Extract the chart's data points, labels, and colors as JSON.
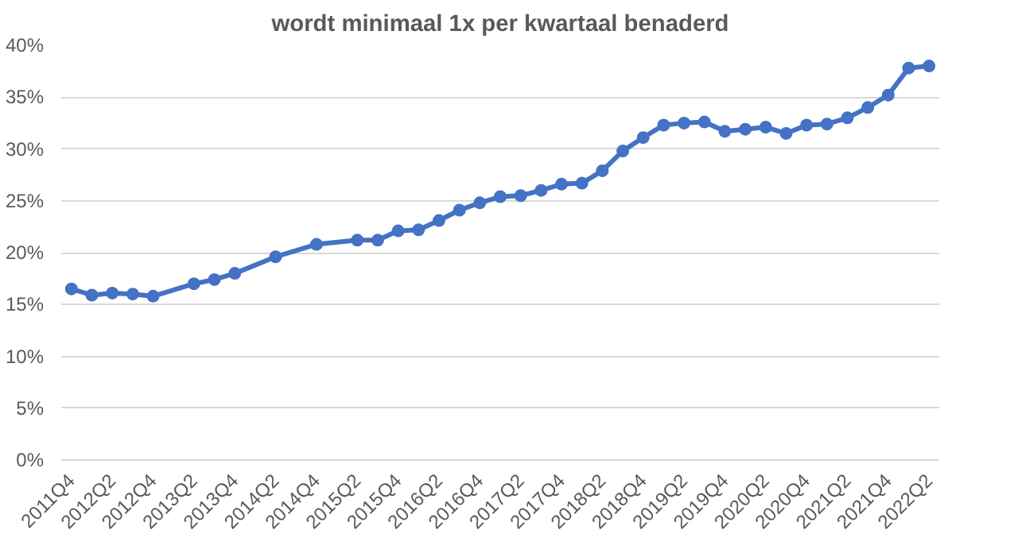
{
  "chart_data": {
    "type": "line",
    "title": "wordt minimaal 1x per kwartaal benaderd",
    "categories": [
      "2011Q4",
      null,
      "2012Q2",
      null,
      "2012Q4",
      null,
      "2013Q2",
      null,
      "2013Q4",
      null,
      "2014Q2",
      null,
      "2014Q4",
      null,
      "2015Q2",
      null,
      "2015Q4",
      null,
      "2016Q2",
      null,
      "2016Q4",
      null,
      "2017Q2",
      null,
      "2017Q4",
      null,
      "2018Q2",
      null,
      "2018Q4",
      null,
      "2019Q2",
      null,
      "2019Q4",
      null,
      "2020Q2",
      null,
      "2020Q4",
      null,
      "2021Q2",
      null,
      "2021Q4",
      null,
      "2022Q2"
    ],
    "series": [
      {
        "color": "#4472c4",
        "values": [
          16.5,
          15.9,
          16.1,
          16.0,
          15.8,
          null,
          17.0,
          17.4,
          18.0,
          null,
          19.6,
          null,
          20.8,
          null,
          21.2,
          21.2,
          22.1,
          22.2,
          23.1,
          24.1,
          24.8,
          25.4,
          25.5,
          26.0,
          26.6,
          26.7,
          27.9,
          29.8,
          31.1,
          32.3,
          32.5,
          32.6,
          31.7,
          31.9,
          32.1,
          31.5,
          32.3,
          32.4,
          33.0,
          34.0,
          35.2,
          37.8,
          38.0
        ]
      }
    ],
    "ylim": [
      0,
      40
    ],
    "yticks": [
      {
        "value": 0,
        "label": "0%"
      },
      {
        "value": 5,
        "label": "5%"
      },
      {
        "value": 10,
        "label": "10%"
      },
      {
        "value": 15,
        "label": "15%"
      },
      {
        "value": 20,
        "label": "20%"
      },
      {
        "value": 25,
        "label": "25%"
      },
      {
        "value": 30,
        "label": "30%"
      },
      {
        "value": 35,
        "label": "35%"
      },
      {
        "value": 40,
        "label": "40%"
      }
    ],
    "grid": "y",
    "marker": "circle",
    "line_style": "solid"
  }
}
